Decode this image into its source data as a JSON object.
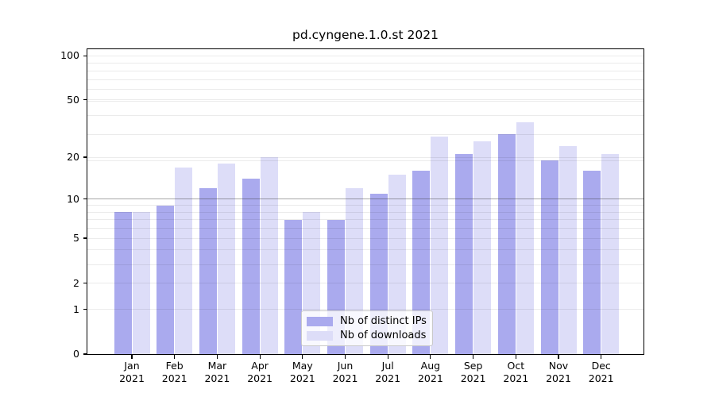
{
  "chart_data": {
    "type": "bar",
    "title": "pd.cyngene.1.0.st 2021",
    "categories": [
      "Jan",
      "Feb",
      "Mar",
      "Apr",
      "May",
      "Jun",
      "Jul",
      "Aug",
      "Sep",
      "Oct",
      "Nov",
      "Dec"
    ],
    "x_year": "2021",
    "series": [
      {
        "name": "Nb of distinct IPs",
        "color": "#aaaaee",
        "values": [
          8,
          9,
          12,
          14,
          7,
          7,
          11,
          16,
          21,
          29,
          19,
          16
        ]
      },
      {
        "name": "Nb of downloads",
        "color": "#ddddf8",
        "values": [
          8,
          17,
          18,
          20,
          8,
          12,
          15,
          28,
          26,
          35,
          24,
          21
        ]
      }
    ],
    "yticks": [
      100,
      50,
      20,
      10,
      5,
      2,
      1,
      0
    ],
    "yscale": "log10(1+y)",
    "ylim": [
      0,
      110
    ],
    "grid": true,
    "ref_line": 10,
    "legend_position": "bottom-center"
  }
}
